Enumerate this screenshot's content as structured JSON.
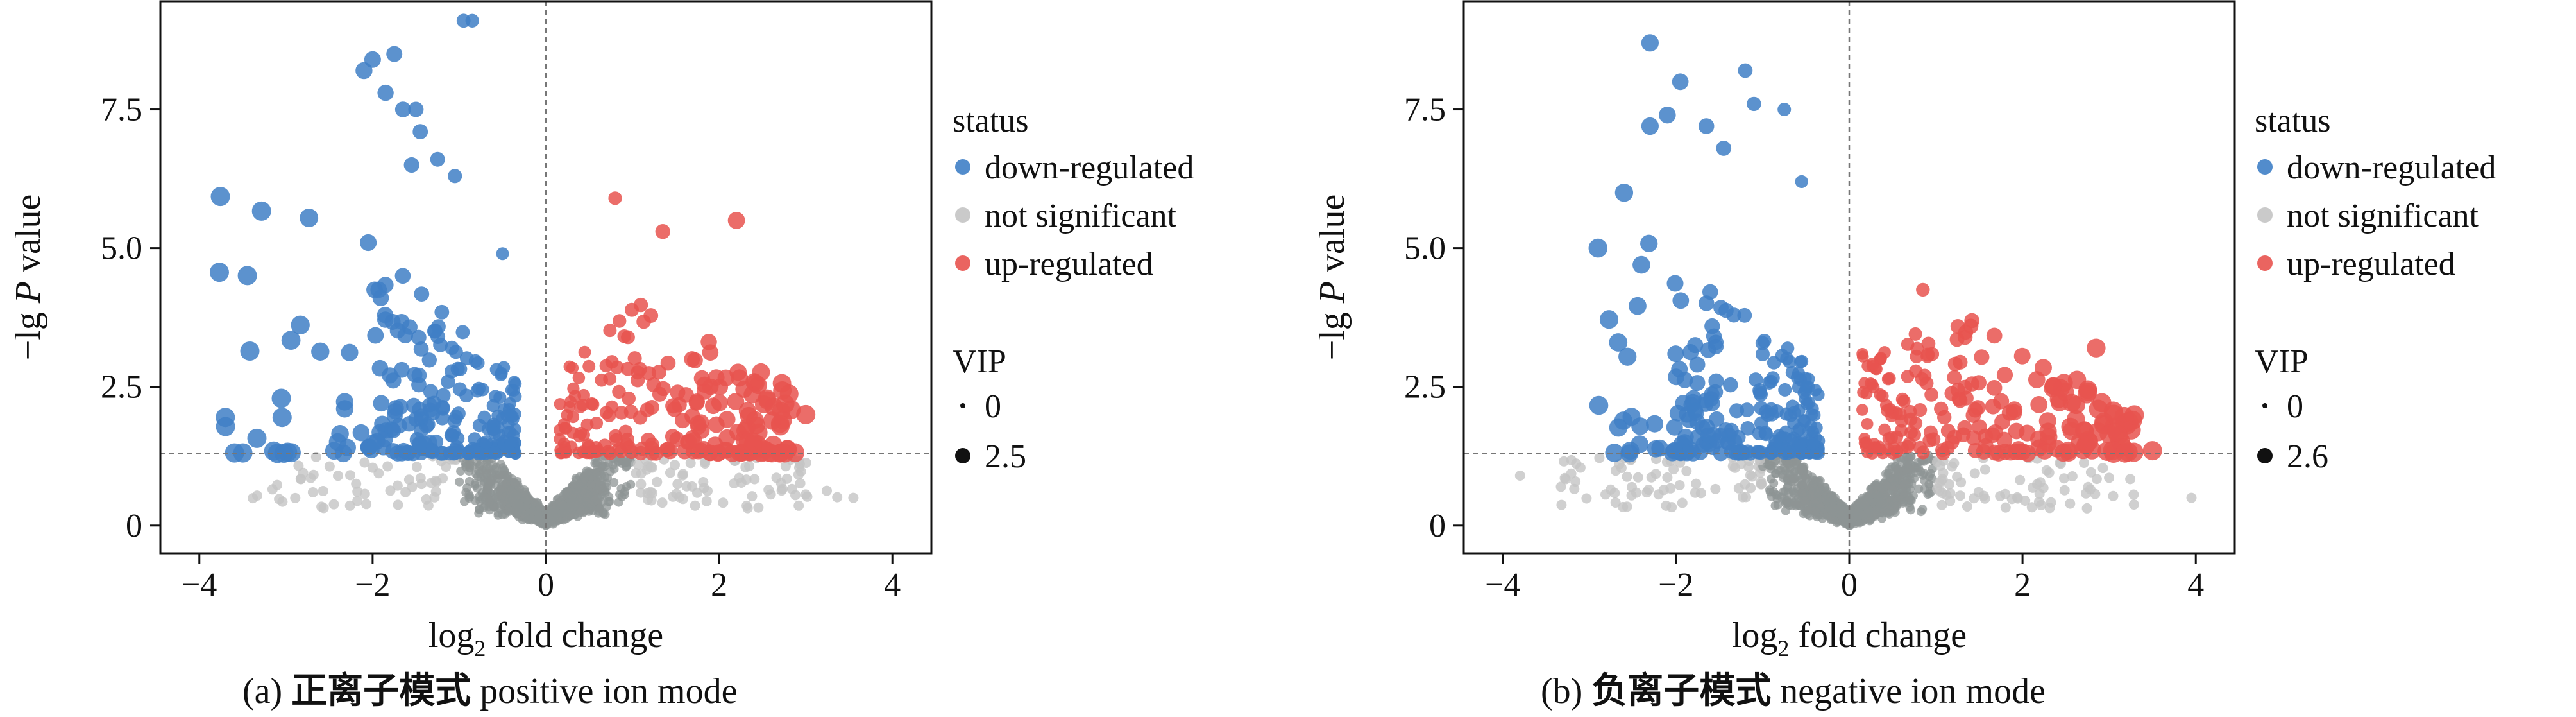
{
  "figure": {
    "legend_title": "status",
    "size_title": "VIP",
    "colors": {
      "down": "#3f7fc6",
      "ns": "#c4c4c4",
      "ns_dense": "#8e9494",
      "up": "#e8534f",
      "axes": "#111111",
      "threshold": "#777777"
    }
  },
  "chart_data": [
    {
      "type": "scatter",
      "title": "",
      "caption_prefix": "(a)",
      "caption_cn": "正离子模式",
      "caption_en": "positive ion mode",
      "xlabel_pre": "log",
      "xlabel_sub": "2",
      "xlabel_post": " fold change",
      "ylabel_pre": "−lg",
      "ylabel_var": "P",
      "ylabel_post": " value",
      "xlim": [
        -4.45,
        4.45
      ],
      "ylim": [
        -0.5,
        9.45
      ],
      "xticks": [
        -4,
        -2,
        0,
        2,
        4
      ],
      "xtick_labels": [
        "−4",
        "−2",
        "0",
        "2",
        "4"
      ],
      "yticks": [
        0,
        2.5,
        5.0,
        7.5
      ],
      "ytick_labels": [
        "0",
        "2.5",
        "5.0",
        "7.5"
      ],
      "threshold_y": 1.3,
      "threshold_x": 0,
      "legend": {
        "placement": "right"
      },
      "status_labels": [
        "down-regulated",
        "not significant",
        "up-regulated"
      ],
      "vip_labels": [
        "0",
        "2.5"
      ],
      "series": [
        {
          "name": "down-regulated",
          "x_range": [
            -3.8,
            -0.3
          ],
          "y_range": [
            1.3,
            9.1
          ]
        },
        {
          "name": "not significant",
          "x_range": [
            -3.9,
            3.6
          ],
          "y_range": [
            0,
            1.3
          ]
        },
        {
          "name": "up-regulated",
          "x_range": [
            0.1,
            3.1
          ],
          "y_range": [
            1.3,
            5.9
          ]
        }
      ],
      "highlighted_points": [
        {
          "x": -0.85,
          "y": 9.1,
          "status": "down"
        },
        {
          "x": -0.95,
          "y": 9.1,
          "status": "down"
        },
        {
          "x": -2.1,
          "y": 8.2,
          "status": "down"
        },
        {
          "x": -2.0,
          "y": 8.4,
          "status": "down"
        },
        {
          "x": -1.75,
          "y": 8.5,
          "status": "down"
        },
        {
          "x": -1.85,
          "y": 7.8,
          "status": "down"
        },
        {
          "x": -1.65,
          "y": 7.5,
          "status": "down"
        },
        {
          "x": -1.5,
          "y": 7.5,
          "status": "down"
        },
        {
          "x": -1.45,
          "y": 7.1,
          "status": "down"
        },
        {
          "x": -1.55,
          "y": 6.5,
          "status": "down"
        },
        {
          "x": -1.25,
          "y": 6.6,
          "status": "down"
        },
        {
          "x": -1.05,
          "y": 6.3,
          "status": "down"
        },
        {
          "x": 0.8,
          "y": 5.9,
          "status": "up"
        },
        {
          "x": 2.2,
          "y": 5.5,
          "status": "up"
        },
        {
          "x": 1.35,
          "y": 5.3,
          "status": "up"
        },
        {
          "x": -2.05,
          "y": 5.1,
          "status": "down"
        },
        {
          "x": -0.5,
          "y": 4.9,
          "status": "down"
        },
        {
          "x": 3.0,
          "y": 2.0,
          "status": "up"
        },
        {
          "x": -3.7,
          "y": 1.95,
          "status": "down"
        },
        {
          "x": 3.55,
          "y": 0.5,
          "status": "ns"
        }
      ]
    },
    {
      "type": "scatter",
      "title": "",
      "caption_prefix": "(b)",
      "caption_cn": "负离子模式",
      "caption_en": "negative ion mode",
      "xlabel_pre": "log",
      "xlabel_sub": "2",
      "xlabel_post": " fold change",
      "ylabel_pre": "−lg",
      "ylabel_var": "P",
      "ylabel_post": " value",
      "xlim": [
        -4.45,
        4.45
      ],
      "ylim": [
        -0.5,
        9.45
      ],
      "xticks": [
        -4,
        -2,
        0,
        2,
        4
      ],
      "xtick_labels": [
        "−4",
        "−2",
        "0",
        "2",
        "4"
      ],
      "yticks": [
        0,
        2.5,
        5.0,
        7.5
      ],
      "ytick_labels": [
        "0",
        "2.5",
        "5.0",
        "7.5"
      ],
      "threshold_y": 1.3,
      "threshold_x": 0,
      "legend": {
        "placement": "right"
      },
      "status_labels": [
        "down-regulated",
        "not significant",
        "up-regulated"
      ],
      "vip_labels": [
        "0",
        "2.6"
      ],
      "series": [
        {
          "name": "down-regulated",
          "x_range": [
            -2.9,
            -0.3
          ],
          "y_range": [
            1.3,
            8.7
          ]
        },
        {
          "name": "not significant",
          "x_range": [
            -3.8,
            4.0
          ],
          "y_range": [
            0,
            1.3
          ]
        },
        {
          "name": "up-regulated",
          "x_range": [
            0.1,
            3.5
          ],
          "y_range": [
            1.3,
            4.2
          ]
        }
      ],
      "highlighted_points": [
        {
          "x": -2.3,
          "y": 8.7,
          "status": "down"
        },
        {
          "x": -1.2,
          "y": 8.2,
          "status": "down"
        },
        {
          "x": -1.95,
          "y": 8.0,
          "status": "down"
        },
        {
          "x": -2.1,
          "y": 7.4,
          "status": "down"
        },
        {
          "x": -1.1,
          "y": 7.6,
          "status": "down"
        },
        {
          "x": -0.75,
          "y": 7.5,
          "status": "down"
        },
        {
          "x": -2.3,
          "y": 7.2,
          "status": "down"
        },
        {
          "x": -1.65,
          "y": 7.2,
          "status": "down"
        },
        {
          "x": -1.45,
          "y": 6.8,
          "status": "down"
        },
        {
          "x": -2.6,
          "y": 6.0,
          "status": "down"
        },
        {
          "x": -0.55,
          "y": 6.2,
          "status": "down"
        },
        {
          "x": -2.9,
          "y": 5.0,
          "status": "down"
        },
        {
          "x": -2.4,
          "y": 4.7,
          "status": "down"
        },
        {
          "x": 0.85,
          "y": 4.25,
          "status": "up"
        },
        {
          "x": 2.85,
          "y": 3.2,
          "status": "up"
        },
        {
          "x": 3.5,
          "y": 1.35,
          "status": "up"
        },
        {
          "x": 3.95,
          "y": 0.5,
          "status": "ns"
        },
        {
          "x": -3.8,
          "y": 0.9,
          "status": "ns"
        }
      ]
    }
  ]
}
